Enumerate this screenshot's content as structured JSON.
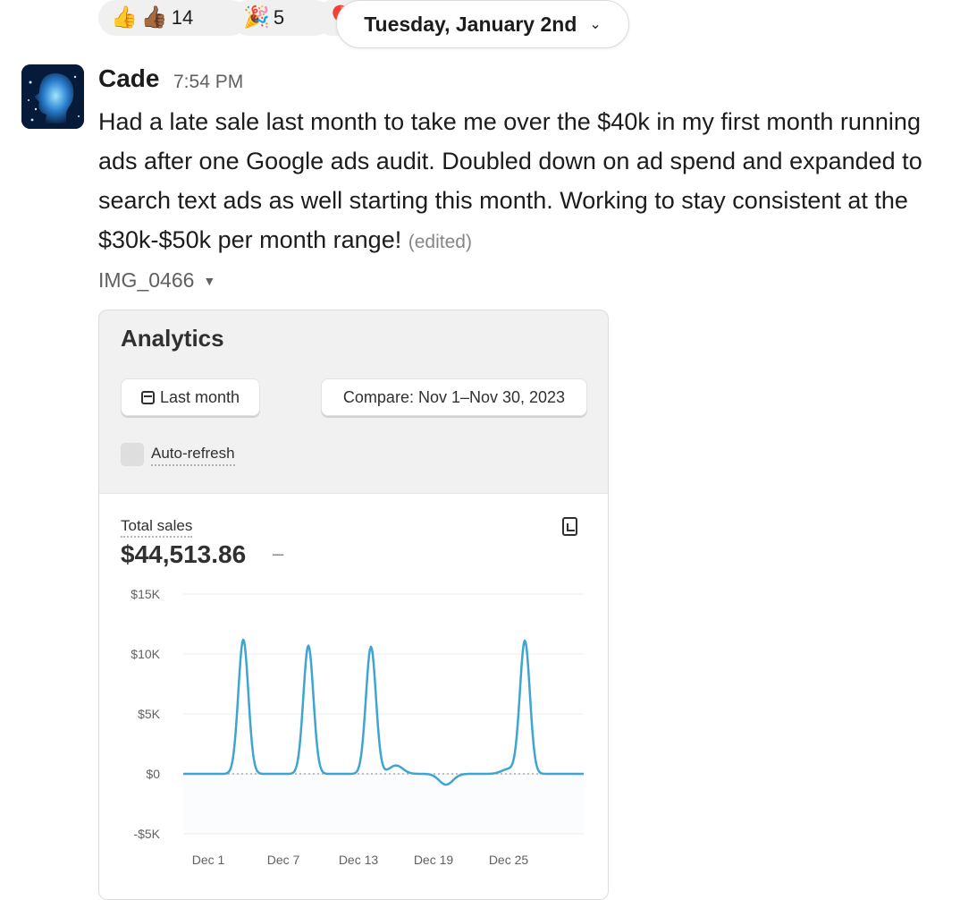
{
  "reactions": [
    {
      "emoji": "👍🏾",
      "count": "14"
    },
    {
      "emoji": "🎉",
      "count": "5"
    }
  ],
  "date_divider": {
    "label": "Tuesday, January 2nd"
  },
  "message": {
    "author": "Cade",
    "time": "7:54 PM",
    "text": "Had a late sale last month to take me over the $40k in my first month running ads after one Google ads audit.  Doubled down on ad spend and expanded to search text ads as well starting this month. Working to stay consistent at the $30k-$50k per month range!",
    "edited": "(edited)",
    "attachment_name": "IMG_0466"
  },
  "analytics": {
    "title": "Analytics",
    "period_button": "Last month",
    "compare_button": "Compare: Nov 1–Nov 30, 2023",
    "auto_refresh_label": "Auto-refresh",
    "total_sales_label": "Total sales",
    "total_sales_value": "$44,513.86",
    "total_sales_change": "–"
  },
  "chart_data": {
    "type": "line",
    "series_color": "#3ea5d0",
    "ylim": [
      -5000,
      15000
    ],
    "y_ticks": [
      {
        "value": 15000,
        "label": "$15K"
      },
      {
        "value": 10000,
        "label": "$10K"
      },
      {
        "value": 5000,
        "label": "$5K"
      },
      {
        "value": 0,
        "label": "$0"
      },
      {
        "value": -5000,
        "label": "-$5K"
      }
    ],
    "x_ticks": [
      {
        "day": 1,
        "label": "Dec 1"
      },
      {
        "day": 7,
        "label": "Dec 7"
      },
      {
        "day": 13,
        "label": "Dec 13"
      },
      {
        "day": 19,
        "label": "Dec 19"
      },
      {
        "day": 25,
        "label": "Dec 25"
      }
    ],
    "x_range": [
      -1,
      31
    ],
    "peaks": [
      {
        "day": 3.8,
        "value": 11200
      },
      {
        "day": 9.0,
        "value": 10700
      },
      {
        "day": 14.0,
        "value": 10600
      },
      {
        "day": 16.0,
        "value": 700
      },
      {
        "day": 20.0,
        "value": -900
      },
      {
        "day": 25.0,
        "value": 400
      },
      {
        "day": 26.3,
        "value": 11100
      }
    ]
  }
}
